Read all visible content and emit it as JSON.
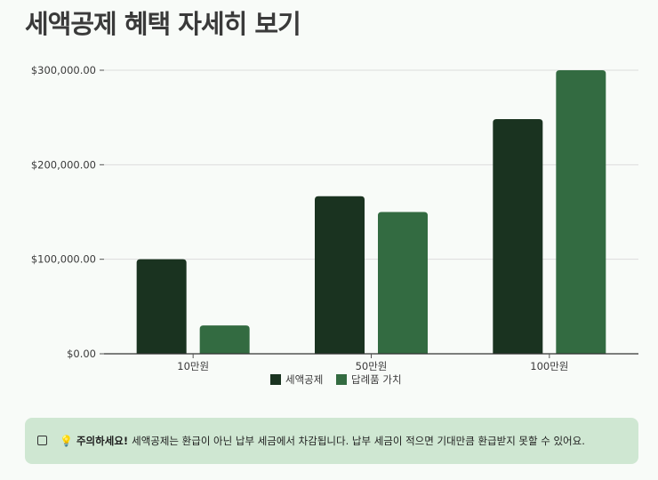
{
  "page": {
    "title": "세액공제 혜택 자세히 보기"
  },
  "notice": {
    "icon": "note-icon",
    "bulb_icon": "lightbulb-icon",
    "title": "주의하세요!",
    "message": "세액공제는 환급이 아닌 납부 세금에서 차감됩니다. 납부 세금이 적으면 기대만큼 환급받지 못할 수 있어요."
  },
  "chart_data": {
    "type": "bar",
    "categories": [
      "10만원",
      "50만원",
      "100만원"
    ],
    "series": [
      {
        "name": "세액공제",
        "values": [
          100000,
          166667,
          248333
        ],
        "color": "#1a3320"
      },
      {
        "name": "답례품 가치",
        "values": [
          30000,
          150000,
          300000
        ],
        "color": "#336b41"
      }
    ],
    "ylim": [
      0,
      300000
    ],
    "yticks": [
      0,
      100000,
      200000,
      300000
    ],
    "ytick_labels": [
      "$0.00",
      "$100,000.00",
      "$200,000.00",
      "$300,000.00"
    ],
    "grid": true,
    "legend": "bottom-center",
    "title": "",
    "xlabel": "",
    "ylabel": ""
  }
}
